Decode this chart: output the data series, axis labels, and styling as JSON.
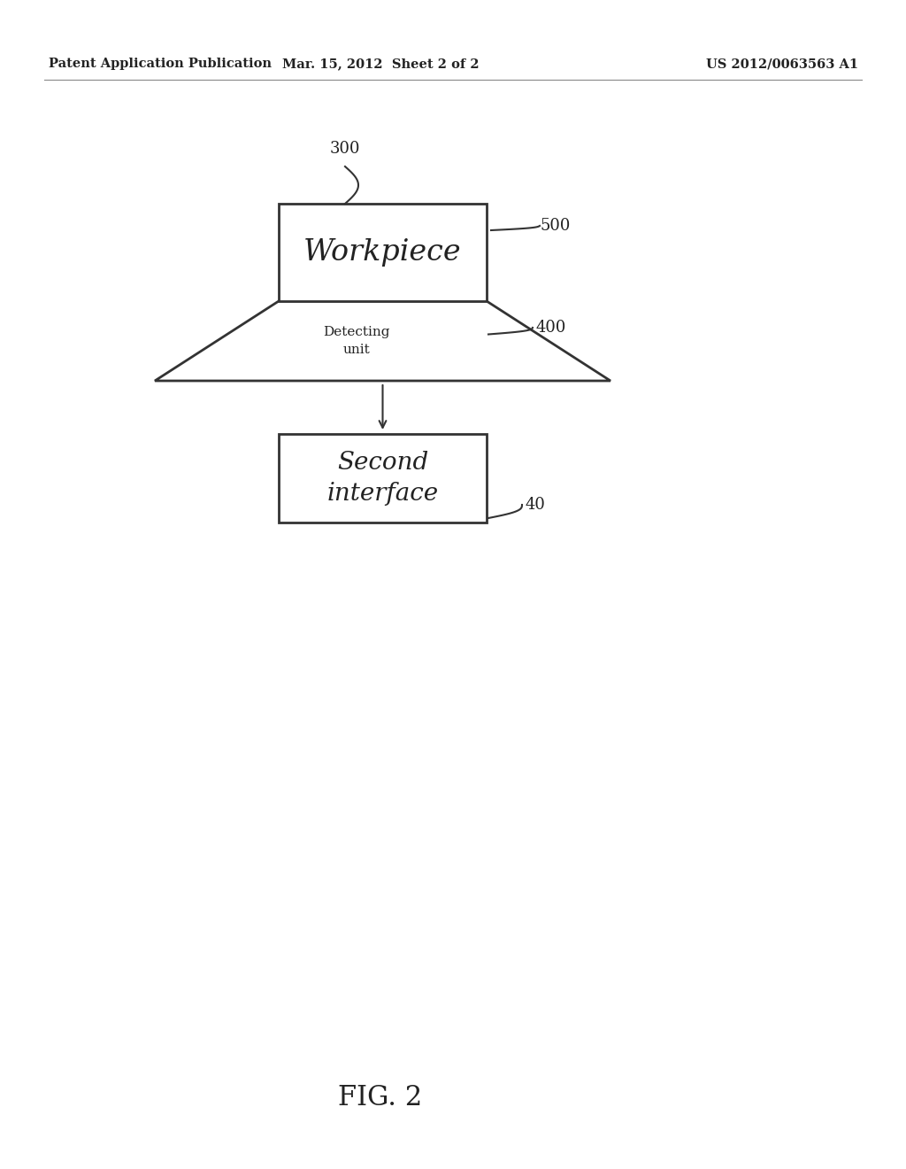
{
  "bg_color": "#ffffff",
  "header_left": "Patent Application Publication",
  "header_mid": "Mar. 15, 2012  Sheet 2 of 2",
  "header_right": "US 2012/0063563 A1",
  "footer_label": "FIG. 2",
  "workpiece_label": "Workpiece",
  "workpiece_ref": "300",
  "detecting_label": "Detecting\nunit",
  "detecting_ref": "400",
  "screw_counter_ref": "500",
  "second_label": "Second\ninterface",
  "second_ref": "40",
  "line_color": "#333333",
  "text_color": "#222222"
}
